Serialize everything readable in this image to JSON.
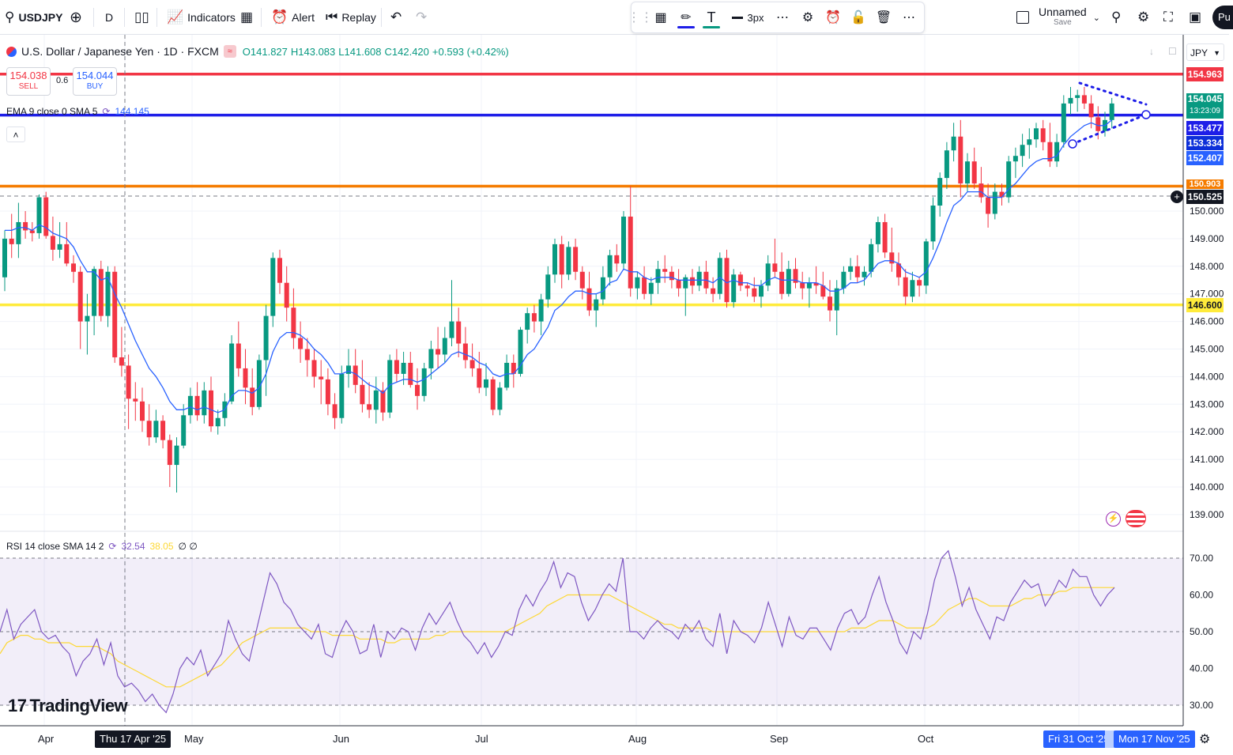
{
  "toolbar": {
    "symbol": "USDJPY",
    "interval": "D",
    "indicators_label": "Indicators",
    "alert_label": "Alert",
    "replay_label": "Replay",
    "stroke_width": "3px",
    "layout_name": "Unnamed",
    "layout_save": "Save",
    "publish_label": "Pu"
  },
  "legend": {
    "title": "U.S. Dollar / Japanese Yen · 1D · FXCM",
    "open": "O141.827",
    "high": "H143.083",
    "low": "L141.608",
    "close": "C142.420",
    "change": "+0.593 (+0.42%)",
    "sell_price": "154.038",
    "sell_label": "SELL",
    "spread": "0.6",
    "buy_price": "154.044",
    "buy_label": "BUY",
    "ema_label": "EMA 9 close 0 SMA 5",
    "ema_value": "144.145",
    "rsi_label": "RSI 14 close SMA 14 2",
    "rsi_value": "32.54",
    "rsi_sma_value": "38.05",
    "rsi_extra": "∅ ∅"
  },
  "currency": "JPY",
  "price_labels": {
    "red_line": "154.963",
    "last": "154.045",
    "countdown": "13:23:09",
    "blue_line": "153.477",
    "ema": "153.334",
    "ema_sma": "152.407",
    "orange_line": "150.903",
    "crosshair": "150.525",
    "yellow_line": "146.600"
  },
  "x_labels": [
    "Apr",
    "May",
    "Jun",
    "Jul",
    "Aug",
    "Sep",
    "Oct"
  ],
  "x_selected": [
    "Thu 17 Apr '25",
    "Fri 31 Oct '25",
    "Mon 17 Nov '25"
  ],
  "branding": "TradingView",
  "colors": {
    "up": "#089981",
    "down": "#f23645",
    "ema": "#2962ff",
    "rsi": "#7e57c2",
    "rsi_sma": "#fdd835",
    "red_line": "#f23645",
    "blue_line": "#1e1ee8",
    "orange_line": "#f57c00",
    "yellow_line": "#ffeb3b"
  },
  "chart_data": {
    "type": "candlestick",
    "symbol": "USDJPY",
    "timeframe": "1D",
    "price_ylim": [
      138.5,
      156.5
    ],
    "y_ticks": [
      139,
      140,
      141,
      142,
      143,
      144,
      145,
      146,
      147,
      148,
      149,
      150
    ],
    "horizontal_lines": [
      154.963,
      153.477,
      150.903,
      146.6
    ],
    "ohlc": [
      [
        147.6,
        149.3,
        147.1,
        149.0
      ],
      [
        149.0,
        149.9,
        148.3,
        148.8
      ],
      [
        148.8,
        150.3,
        148.3,
        149.6
      ],
      [
        149.6,
        150.0,
        149.0,
        149.3
      ],
      [
        149.3,
        149.6,
        148.9,
        149.2
      ],
      [
        149.2,
        150.6,
        149.0,
        150.5
      ],
      [
        150.5,
        150.7,
        149.0,
        149.1
      ],
      [
        149.1,
        149.8,
        148.2,
        148.6
      ],
      [
        148.6,
        149.6,
        148.3,
        148.8
      ],
      [
        148.8,
        149.6,
        148.0,
        148.1
      ],
      [
        148.1,
        148.4,
        147.4,
        147.8
      ],
      [
        147.8,
        148.0,
        145.0,
        146.0
      ],
      [
        146.0,
        147.0,
        144.8,
        146.2
      ],
      [
        146.2,
        148.0,
        145.5,
        147.9
      ],
      [
        147.9,
        148.2,
        146.0,
        146.2
      ],
      [
        146.2,
        148.0,
        145.8,
        147.8
      ],
      [
        147.8,
        148.0,
        144.5,
        144.7
      ],
      [
        144.7,
        145.8,
        144.0,
        144.4
      ],
      [
        144.4,
        144.8,
        142.1,
        143.2
      ],
      [
        143.2,
        143.8,
        142.4,
        143.1
      ],
      [
        143.1,
        143.6,
        142.0,
        142.4
      ],
      [
        142.4,
        143.0,
        141.5,
        141.8
      ],
      [
        141.8,
        142.8,
        141.6,
        142.4
      ],
      [
        142.4,
        142.6,
        141.4,
        141.7
      ],
      [
        141.7,
        141.9,
        140.0,
        140.8
      ],
      [
        140.8,
        141.8,
        139.8,
        141.5
      ],
      [
        141.5,
        143.0,
        141.4,
        142.6
      ],
      [
        142.6,
        143.6,
        142.3,
        143.3
      ],
      [
        143.3,
        143.8,
        142.4,
        142.6
      ],
      [
        142.6,
        143.8,
        142.3,
        143.5
      ],
      [
        143.5,
        144.0,
        142.0,
        142.2
      ],
      [
        142.2,
        142.8,
        141.9,
        142.5
      ],
      [
        142.5,
        143.4,
        142.2,
        143.1
      ],
      [
        143.1,
        145.5,
        143.0,
        145.2
      ],
      [
        145.2,
        146.0,
        144.0,
        144.3
      ],
      [
        144.3,
        145.0,
        143.0,
        143.6
      ],
      [
        143.6,
        144.3,
        142.6,
        142.9
      ],
      [
        142.9,
        144.8,
        142.8,
        144.6
      ],
      [
        144.6,
        146.6,
        143.3,
        146.2
      ],
      [
        146.2,
        148.5,
        145.8,
        148.3
      ],
      [
        148.3,
        148.6,
        147.0,
        147.4
      ],
      [
        147.4,
        148.0,
        146.0,
        146.5
      ],
      [
        146.5,
        147.2,
        145.0,
        145.4
      ],
      [
        145.4,
        146.0,
        144.5,
        145.0
      ],
      [
        145.0,
        145.4,
        144.0,
        144.6
      ],
      [
        144.6,
        145.0,
        143.6,
        144.0
      ],
      [
        144.0,
        144.6,
        143.0,
        143.9
      ],
      [
        143.9,
        144.3,
        142.6,
        143.0
      ],
      [
        143.0,
        143.4,
        142.1,
        142.5
      ],
      [
        142.5,
        144.4,
        142.3,
        144.1
      ],
      [
        144.1,
        145.0,
        143.6,
        144.4
      ],
      [
        144.4,
        145.0,
        143.4,
        143.7
      ],
      [
        143.7,
        144.6,
        142.7,
        143.0
      ],
      [
        143.0,
        143.8,
        142.5,
        142.8
      ],
      [
        142.8,
        144.0,
        142.3,
        143.5
      ],
      [
        143.5,
        143.8,
        142.4,
        142.7
      ],
      [
        142.7,
        144.8,
        142.5,
        144.6
      ],
      [
        144.6,
        145.0,
        143.8,
        144.1
      ],
      [
        144.1,
        144.9,
        143.7,
        144.5
      ],
      [
        144.5,
        144.9,
        143.6,
        143.7
      ],
      [
        143.7,
        144.3,
        142.8,
        143.3
      ],
      [
        143.3,
        144.5,
        143.1,
        144.3
      ],
      [
        144.3,
        145.3,
        143.9,
        145.0
      ],
      [
        145.0,
        145.8,
        144.3,
        144.8
      ],
      [
        144.8,
        145.8,
        144.5,
        145.4
      ],
      [
        145.4,
        147.5,
        145.1,
        146.0
      ],
      [
        146.0,
        146.5,
        144.7,
        145.2
      ],
      [
        145.2,
        145.8,
        144.3,
        144.6
      ],
      [
        144.6,
        145.2,
        144.0,
        144.3
      ],
      [
        144.3,
        144.9,
        143.4,
        143.6
      ],
      [
        143.6,
        144.5,
        143.3,
        143.9
      ],
      [
        143.9,
        144.0,
        142.6,
        142.8
      ],
      [
        142.8,
        143.8,
        142.6,
        143.6
      ],
      [
        143.6,
        144.8,
        143.5,
        144.5
      ],
      [
        144.5,
        144.8,
        143.6,
        144.1
      ],
      [
        144.1,
        145.8,
        144.0,
        145.7
      ],
      [
        145.7,
        146.5,
        145.2,
        146.3
      ],
      [
        146.3,
        146.6,
        145.6,
        146.0
      ],
      [
        146.0,
        147.0,
        145.5,
        146.8
      ],
      [
        146.8,
        148.0,
        146.5,
        147.7
      ],
      [
        147.7,
        149.0,
        147.4,
        148.8
      ],
      [
        148.8,
        149.1,
        147.2,
        147.7
      ],
      [
        147.7,
        148.9,
        147.5,
        148.7
      ],
      [
        148.7,
        149.0,
        147.5,
        147.8
      ],
      [
        147.8,
        148.0,
        146.8,
        147.2
      ],
      [
        147.2,
        147.8,
        146.2,
        146.4
      ],
      [
        146.4,
        147.0,
        145.8,
        146.8
      ],
      [
        146.8,
        148.0,
        146.6,
        147.6
      ],
      [
        147.6,
        148.6,
        147.3,
        148.4
      ],
      [
        148.4,
        148.8,
        147.8,
        148.1
      ],
      [
        148.1,
        150.0,
        147.9,
        149.8
      ],
      [
        149.8,
        150.9,
        146.9,
        147.2
      ],
      [
        147.2,
        147.8,
        146.8,
        147.6
      ],
      [
        147.6,
        148.0,
        146.8,
        147.0
      ],
      [
        147.0,
        147.6,
        146.6,
        147.4
      ],
      [
        147.4,
        148.2,
        147.0,
        147.9
      ],
      [
        147.9,
        148.4,
        147.4,
        147.8
      ],
      [
        147.8,
        148.0,
        147.2,
        147.5
      ],
      [
        147.5,
        147.9,
        146.9,
        147.2
      ],
      [
        147.2,
        147.7,
        146.2,
        147.6
      ],
      [
        147.6,
        147.9,
        147.0,
        147.3
      ],
      [
        147.3,
        148.0,
        147.1,
        147.8
      ],
      [
        147.8,
        148.2,
        147.0,
        147.2
      ],
      [
        147.2,
        147.6,
        146.7,
        147.0
      ],
      [
        147.0,
        148.5,
        146.8,
        148.3
      ],
      [
        148.3,
        148.6,
        146.5,
        146.7
      ],
      [
        146.7,
        147.9,
        146.5,
        147.7
      ],
      [
        147.7,
        147.8,
        147.1,
        147.3
      ],
      [
        147.3,
        147.4,
        146.9,
        147.2
      ],
      [
        147.2,
        147.6,
        146.7,
        146.9
      ],
      [
        146.9,
        147.5,
        146.5,
        147.3
      ],
      [
        147.3,
        148.4,
        147.1,
        148.1
      ],
      [
        148.1,
        149.0,
        147.6,
        147.8
      ],
      [
        147.8,
        148.5,
        146.8,
        147.0
      ],
      [
        147.0,
        148.2,
        146.9,
        147.9
      ],
      [
        147.9,
        148.3,
        147.2,
        147.4
      ],
      [
        147.4,
        147.8,
        146.8,
        147.2
      ],
      [
        147.2,
        147.6,
        146.5,
        147.4
      ],
      [
        147.4,
        148.0,
        147.0,
        147.3
      ],
      [
        147.3,
        147.8,
        146.8,
        146.9
      ],
      [
        146.9,
        147.5,
        146.0,
        146.4
      ],
      [
        146.4,
        147.5,
        145.5,
        147.2
      ],
      [
        147.2,
        148.0,
        147.0,
        147.8
      ],
      [
        147.8,
        148.3,
        147.5,
        148.0
      ],
      [
        148.0,
        148.4,
        147.4,
        147.6
      ],
      [
        147.6,
        148.0,
        147.3,
        147.8
      ],
      [
        147.8,
        149.0,
        147.6,
        148.8
      ],
      [
        148.8,
        149.8,
        148.5,
        149.6
      ],
      [
        149.6,
        149.9,
        148.3,
        148.5
      ],
      [
        148.5,
        149.4,
        147.8,
        148.1
      ],
      [
        148.1,
        148.5,
        147.3,
        147.6
      ],
      [
        147.6,
        147.9,
        146.6,
        146.9
      ],
      [
        146.9,
        147.8,
        146.7,
        147.5
      ],
      [
        147.5,
        147.6,
        146.9,
        147.3
      ],
      [
        147.3,
        149.0,
        147.0,
        148.9
      ],
      [
        148.9,
        150.5,
        148.6,
        150.2
      ],
      [
        150.2,
        151.4,
        149.8,
        151.2
      ],
      [
        151.2,
        152.5,
        150.8,
        152.2
      ],
      [
        152.2,
        153.2,
        151.8,
        152.7
      ],
      [
        152.7,
        153.3,
        150.5,
        151.0
      ],
      [
        151.0,
        152.1,
        150.7,
        151.8
      ],
      [
        151.8,
        152.3,
        150.8,
        151.0
      ],
      [
        151.0,
        151.6,
        150.3,
        150.5
      ],
      [
        150.5,
        151.0,
        149.4,
        149.9
      ],
      [
        149.9,
        151.0,
        149.7,
        150.7
      ],
      [
        150.7,
        151.0,
        150.2,
        150.5
      ],
      [
        150.5,
        152.0,
        150.3,
        151.8
      ],
      [
        151.8,
        152.3,
        151.2,
        152.0
      ],
      [
        152.0,
        152.8,
        151.6,
        152.4
      ],
      [
        152.4,
        153.0,
        151.9,
        152.6
      ],
      [
        152.6,
        153.2,
        152.3,
        153.0
      ],
      [
        153.0,
        153.3,
        152.2,
        152.5
      ],
      [
        152.5,
        153.2,
        151.6,
        151.8
      ],
      [
        151.8,
        152.8,
        151.6,
        152.5
      ],
      [
        152.5,
        154.2,
        152.3,
        153.9
      ],
      [
        153.9,
        154.5,
        153.5,
        154.1
      ],
      [
        154.1,
        154.4,
        153.6,
        154.2
      ],
      [
        154.2,
        154.5,
        153.7,
        153.9
      ],
      [
        153.9,
        154.2,
        153.0,
        153.4
      ],
      [
        153.4,
        153.8,
        152.6,
        152.9
      ],
      [
        152.9,
        153.6,
        152.7,
        153.3
      ],
      [
        153.3,
        154.1,
        153.0,
        153.9
      ]
    ],
    "ema": [
      149.3,
      149.3,
      149.4,
      149.4,
      149.3,
      149.5,
      149.4,
      149.2,
      149.1,
      149.0,
      148.7,
      148.2,
      147.8,
      147.8,
      147.5,
      147.6,
      147.0,
      146.5,
      145.9,
      145.3,
      144.8,
      144.3,
      144.0,
      143.6,
      143.1,
      142.8,
      142.8,
      142.9,
      142.8,
      142.9,
      142.8,
      142.7,
      142.8,
      143.3,
      143.5,
      143.5,
      143.4,
      143.6,
      144.1,
      144.9,
      145.4,
      145.6,
      145.6,
      145.5,
      145.3,
      145.0,
      144.8,
      144.5,
      144.1,
      144.1,
      144.2,
      144.1,
      143.9,
      143.7,
      143.6,
      143.4,
      143.7,
      143.8,
      143.9,
      143.9,
      143.8,
      143.9,
      144.1,
      144.3,
      144.5,
      144.8,
      144.9,
      144.8,
      144.7,
      144.5,
      144.4,
      144.1,
      144.0,
      144.1,
      144.1,
      144.4,
      144.8,
      145.0,
      145.4,
      145.8,
      146.4,
      146.6,
      146.9,
      147.1,
      147.1,
      147.0,
      147.0,
      147.1,
      147.4,
      147.5,
      147.9,
      147.8,
      147.8,
      147.6,
      147.5,
      147.6,
      147.6,
      147.6,
      147.5,
      147.5,
      147.5,
      147.5,
      147.5,
      147.4,
      147.6,
      147.4,
      147.5,
      147.4,
      147.4,
      147.3,
      147.3,
      147.5,
      147.6,
      147.5,
      147.5,
      147.5,
      147.4,
      147.4,
      147.4,
      147.3,
      147.1,
      147.1,
      147.2,
      147.4,
      147.4,
      147.5,
      147.8,
      148.1,
      148.2,
      148.2,
      148.1,
      147.8,
      147.7,
      147.6,
      147.8,
      148.3,
      148.9,
      149.6,
      150.2,
      150.4,
      150.7,
      150.7,
      150.7,
      150.5,
      150.5,
      150.5,
      150.8,
      151.0,
      151.3,
      151.6,
      151.8,
      151.9,
      151.9,
      152.0,
      152.4,
      152.7,
      152.9,
      153.1,
      153.2,
      153.1,
      153.1,
      153.3
    ],
    "rsi_ylim": [
      25,
      75
    ],
    "rsi_levels": [
      70,
      50,
      30
    ],
    "rsi": [
      50,
      56,
      48,
      52,
      54,
      56,
      50,
      48,
      49,
      46,
      44,
      38,
      42,
      44,
      48,
      41,
      47,
      38,
      35,
      36,
      34,
      31,
      33,
      30,
      28,
      33,
      40,
      43,
      41,
      45,
      38,
      41,
      44,
      53,
      48,
      44,
      42,
      50,
      58,
      66,
      63,
      58,
      56,
      52,
      50,
      48,
      52,
      44,
      43,
      49,
      53,
      50,
      44,
      45,
      52,
      43,
      50,
      48,
      51,
      50,
      45,
      51,
      55,
      52,
      55,
      58,
      53,
      49,
      47,
      44,
      47,
      43,
      46,
      50,
      49,
      56,
      60,
      57,
      61,
      64,
      69,
      62,
      66,
      65,
      58,
      53,
      56,
      60,
      63,
      61,
      70,
      50,
      50,
      48,
      51,
      53,
      51,
      50,
      48,
      52,
      50,
      53,
      48,
      46,
      55,
      44,
      53,
      50,
      49,
      47,
      51,
      58,
      52,
      46,
      54,
      49,
      48,
      51,
      51,
      48,
      45,
      51,
      55,
      56,
      52,
      54,
      60,
      65,
      58,
      53,
      47,
      44,
      50,
      48,
      55,
      64,
      70,
      72,
      65,
      57,
      62,
      56,
      52,
      48,
      54,
      53,
      58,
      61,
      64,
      62,
      63,
      57,
      60,
      64,
      62,
      67,
      65,
      65,
      60,
      57,
      60,
      62
    ],
    "rsi_sma": [
      44,
      47,
      48,
      49,
      49,
      48,
      48,
      47,
      47,
      47,
      47,
      46,
      46,
      46,
      46,
      45,
      44,
      42,
      41,
      40,
      39,
      38,
      37,
      36,
      35,
      35,
      35,
      36,
      37,
      38,
      39,
      40,
      41,
      43,
      45,
      47,
      48,
      49,
      50,
      51,
      51,
      51,
      51,
      51,
      51,
      50,
      50,
      50,
      49,
      49,
      49,
      49,
      48,
      48,
      48,
      48,
      47,
      47,
      48,
      48,
      48,
      48,
      48,
      49,
      49,
      50,
      50,
      50,
      50,
      50,
      50,
      50,
      50,
      50,
      51,
      52,
      53,
      54,
      55,
      57,
      58,
      59,
      60,
      60,
      60,
      60,
      60,
      60,
      60,
      59,
      58,
      57,
      56,
      55,
      54,
      53,
      52,
      52,
      51,
      51,
      51,
      51,
      51,
      50,
      50,
      50,
      50,
      50,
      50,
      50,
      50,
      50,
      50,
      50,
      50,
      50,
      50,
      50,
      50,
      50,
      50,
      50,
      50,
      51,
      51,
      51,
      52,
      53,
      53,
      53,
      52,
      51,
      51,
      51,
      51,
      52,
      54,
      56,
      57,
      58,
      59,
      59,
      58,
      57,
      57,
      57,
      57,
      58,
      59,
      59,
      60,
      60,
      60,
      61,
      61,
      62,
      62,
      62,
      62,
      62,
      62,
      62
    ]
  }
}
